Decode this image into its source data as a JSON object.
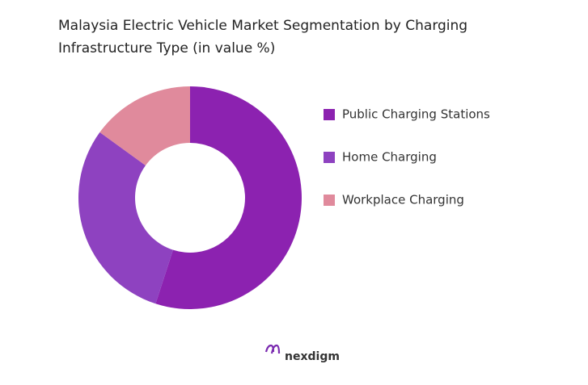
{
  "chart_data": {
    "type": "donut",
    "title": "Malaysia Electric Vehicle Market Segmentation by Charging Infrastructure Type (in value %)",
    "categories": [
      "Public Charging Stations",
      "Home Charging",
      "Workplace Charging"
    ],
    "values": [
      55,
      30,
      15
    ],
    "colors": [
      "#8c22b0",
      "#8e42c0",
      "#e08a9c"
    ],
    "legend": "right"
  },
  "logo": "nexdigm"
}
